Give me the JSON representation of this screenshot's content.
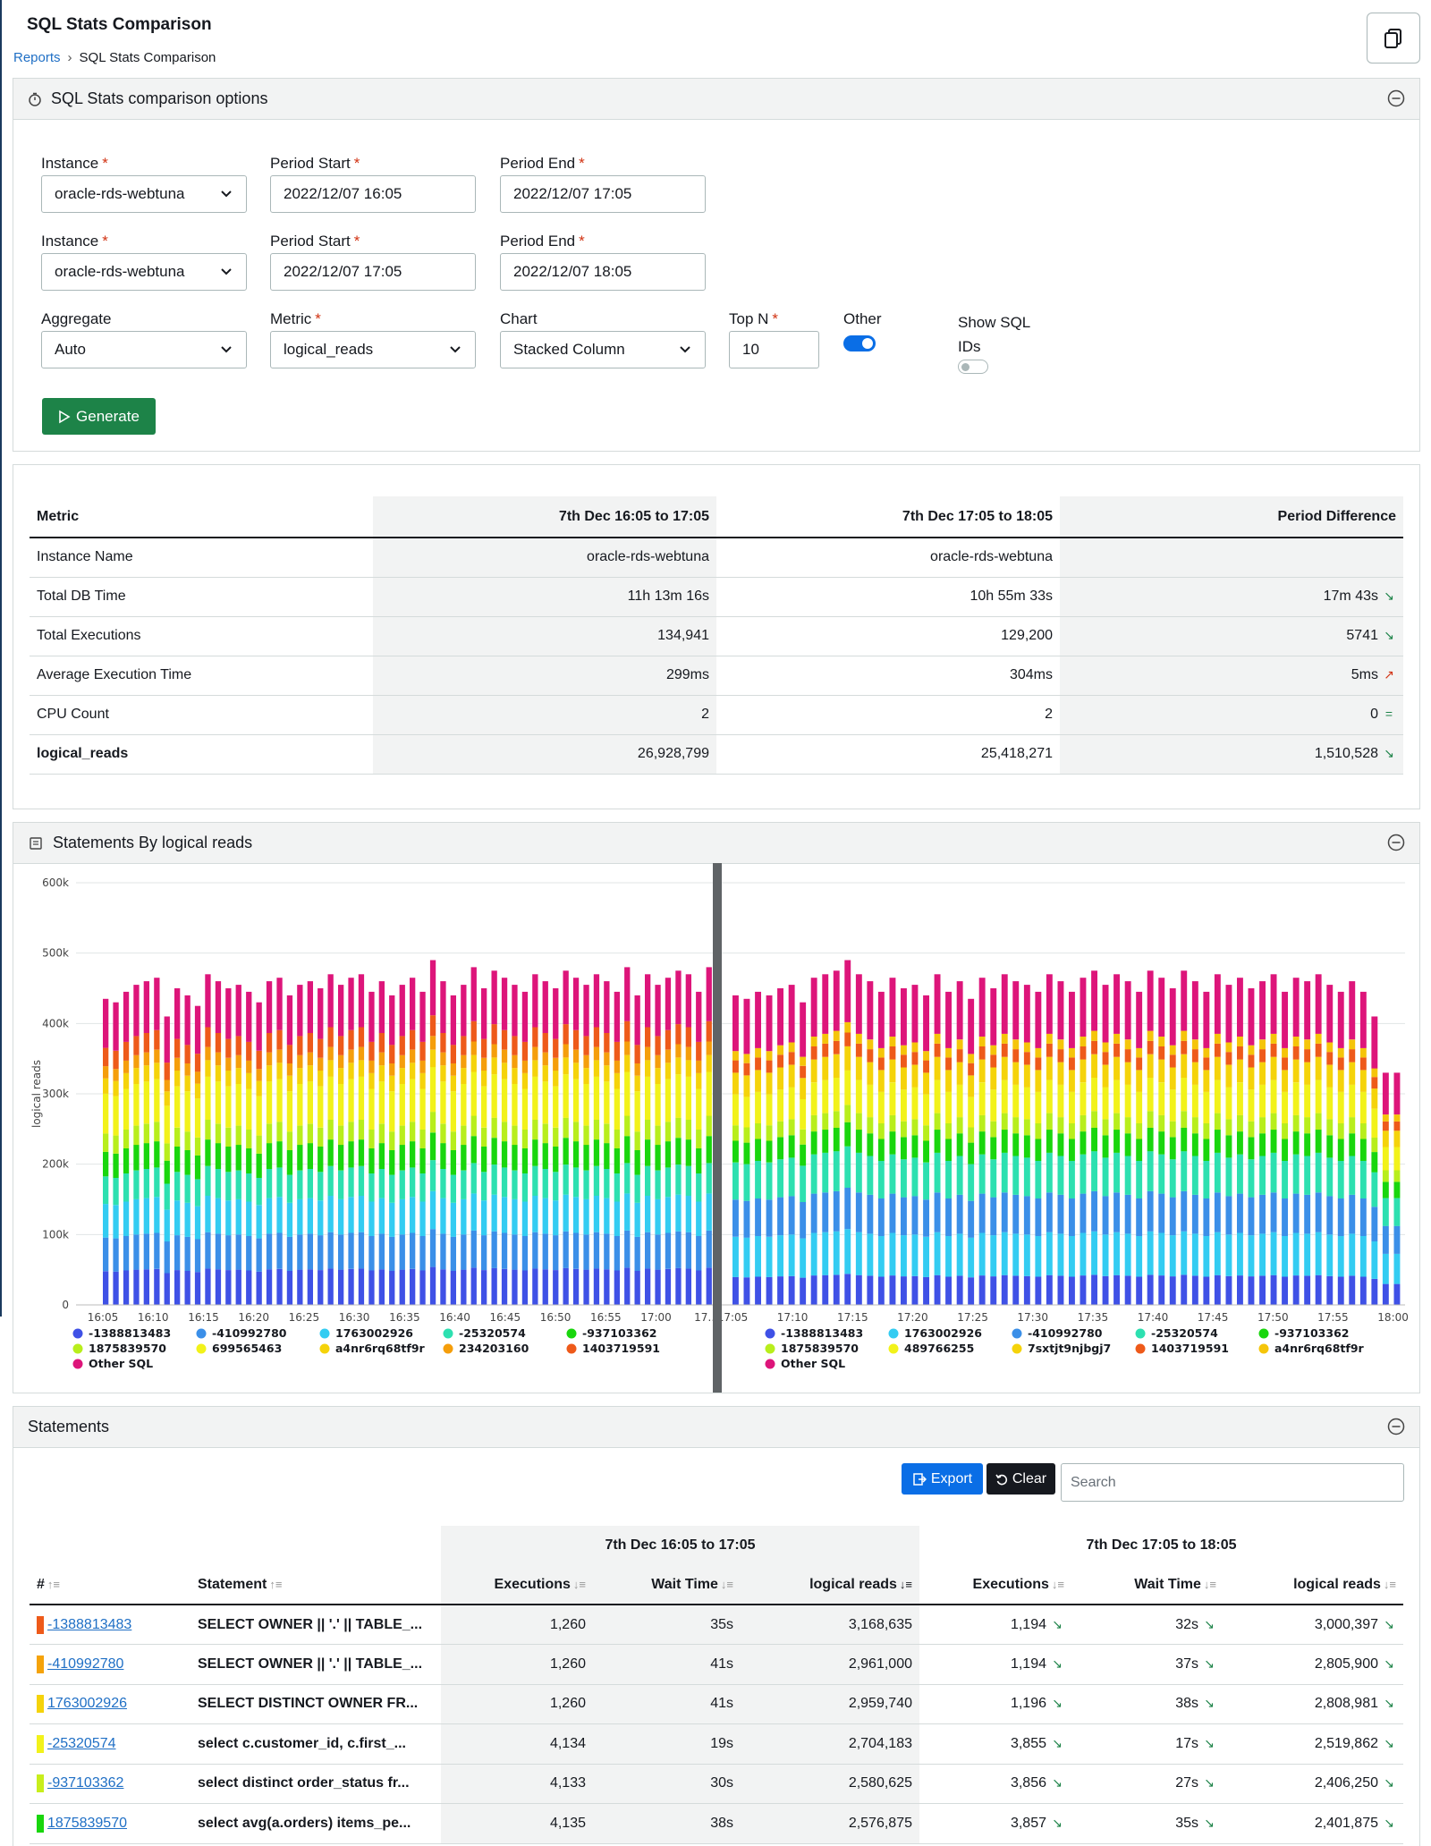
{
  "page": {
    "title": "SQL Stats Comparison",
    "breadcrumb_root": "Reports",
    "breadcrumb_current": "SQL Stats Comparison"
  },
  "options": {
    "panel_title": "SQL Stats comparison options",
    "instance_label": "Instance",
    "period_start_label": "Period Start",
    "period_end_label": "Period End",
    "row1": {
      "instance": "oracle-rds-webtuna",
      "start": "2022/12/07 16:05",
      "end": "2022/12/07 17:05"
    },
    "row2": {
      "instance": "oracle-rds-webtuna",
      "start": "2022/12/07 17:05",
      "end": "2022/12/07 18:05"
    },
    "aggregate_label": "Aggregate",
    "aggregate_value": "Auto",
    "metric_label": "Metric",
    "metric_value": "logical_reads",
    "chart_label": "Chart",
    "chart_value": "Stacked Column",
    "topn_label": "Top N",
    "topn_value": "10",
    "other_label": "Other",
    "other_enabled": true,
    "show_sql_ids_label_1": "Show SQL",
    "show_sql_ids_label_2": "IDs",
    "show_sql_ids_enabled": false,
    "generate_label": "Generate"
  },
  "metrics_table": {
    "headers": [
      "Metric",
      "7th Dec 16:05 to 17:05",
      "7th Dec 17:05 to 18:05",
      "Period Difference"
    ],
    "rows": [
      {
        "metric": "Instance Name",
        "p1": "oracle-rds-webtuna",
        "p2": "oracle-rds-webtuna",
        "diff": "",
        "trend": ""
      },
      {
        "metric": "Total DB Time",
        "p1": "11h 13m 16s",
        "p2": "10h 55m 33s",
        "diff": "17m 43s",
        "trend": "down"
      },
      {
        "metric": "Total Executions",
        "p1": "134,941",
        "p2": "129,200",
        "diff": "5741",
        "trend": "down"
      },
      {
        "metric": "Average Execution Time",
        "p1": "299ms",
        "p2": "304ms",
        "diff": "5ms",
        "trend": "up"
      },
      {
        "metric": "CPU Count",
        "p1": "2",
        "p2": "2",
        "diff": "0",
        "trend": "equal"
      },
      {
        "metric": "logical_reads",
        "p1": "26,928,799",
        "p2": "25,418,271",
        "diff": "1,510,528",
        "trend": "down"
      }
    ]
  },
  "chart_panel": {
    "title": "Statements By logical reads"
  },
  "chart_data": {
    "type": "bar",
    "stacked": true,
    "ylabel": "logical reads",
    "ylim": [
      0,
      600000
    ],
    "yticks": [
      "0",
      "100k",
      "200k",
      "300k",
      "400k",
      "500k",
      "600k"
    ],
    "grid": true,
    "periods": [
      {
        "x_ticks": [
          "16:05",
          "16:10",
          "16:15",
          "16:20",
          "16:25",
          "16:30",
          "16:35",
          "16:40",
          "16:45",
          "16:50",
          "16:55",
          "17:00",
          "17…"
        ],
        "bar_count": 60,
        "totals": [
          435000,
          430000,
          445000,
          455000,
          460000,
          465000,
          410000,
          450000,
          440000,
          425000,
          470000,
          460000,
          450000,
          455000,
          445000,
          430000,
          460000,
          465000,
          440000,
          455000,
          460000,
          450000,
          470000,
          455000,
          465000,
          470000,
          445000,
          460000,
          440000,
          455000,
          465000,
          445000,
          490000,
          460000,
          440000,
          455000,
          480000,
          450000,
          475000,
          465000,
          455000,
          445000,
          470000,
          460000,
          450000,
          475000,
          465000,
          455000,
          470000,
          460000,
          445000,
          480000,
          440000,
          470000,
          455000,
          465000,
          475000,
          470000,
          445000,
          480000
        ],
        "series_values_avg": [
          {
            "name": "-1388813483",
            "value": 52000
          },
          {
            "name": "-410992780",
            "value": 50000
          },
          {
            "name": "1763002926",
            "value": 50000
          },
          {
            "name": "-25320574",
            "value": 48000
          },
          {
            "name": "-937103362",
            "value": 45000
          },
          {
            "name": "1875839570",
            "value": 30000
          },
          {
            "name": "699565463",
            "value": 55000
          },
          {
            "name": "a4nr6rq68tf9r",
            "value": 25000
          },
          {
            "name": "234203160",
            "value": 20000
          },
          {
            "name": "1403719591",
            "value": 20000
          },
          {
            "name": "Other SQL",
            "value": 60000
          }
        ],
        "legend": [
          {
            "name": "-1388813483",
            "color": "#3f51e6"
          },
          {
            "name": "-410992780",
            "color": "#3b8fe8"
          },
          {
            "name": "1763002926",
            "color": "#33ccf2"
          },
          {
            "name": "-25320574",
            "color": "#2de0b0"
          },
          {
            "name": "-937103362",
            "color": "#19d60d"
          },
          {
            "name": "1875839570",
            "color": "#b8ee1c"
          },
          {
            "name": "699565463",
            "color": "#f2f21a"
          },
          {
            "name": "a4nr6rq68tf9r",
            "color": "#f5d30a"
          },
          {
            "name": "234203160",
            "color": "#f59e0b"
          },
          {
            "name": "1403719591",
            "color": "#ee5a1a"
          },
          {
            "name": "Other SQL",
            "color": "#dd157a"
          }
        ]
      },
      {
        "x_ticks": [
          "17:05",
          "17:10",
          "17:15",
          "17:20",
          "17:25",
          "17:30",
          "17:35",
          "17:40",
          "17:45",
          "17:50",
          "17:55",
          "18:00"
        ],
        "bar_count": 60,
        "totals": [
          440000,
          435000,
          445000,
          440000,
          450000,
          455000,
          430000,
          465000,
          470000,
          475000,
          490000,
          470000,
          460000,
          445000,
          465000,
          450000,
          455000,
          440000,
          470000,
          445000,
          460000,
          435000,
          465000,
          450000,
          470000,
          460000,
          455000,
          445000,
          470000,
          460000,
          445000,
          465000,
          475000,
          455000,
          470000,
          460000,
          445000,
          475000,
          465000,
          450000,
          475000,
          460000,
          445000,
          470000,
          455000,
          465000,
          450000,
          460000,
          470000,
          445000,
          465000,
          460000,
          470000,
          455000,
          445000,
          460000,
          445000,
          410000,
          330000,
          330000
        ],
        "legend": [
          {
            "name": "-1388813483",
            "color": "#3f51e6"
          },
          {
            "name": "1763002926",
            "color": "#33ccf2"
          },
          {
            "name": "-410992780",
            "color": "#3b8fe8"
          },
          {
            "name": "-25320574",
            "color": "#2de0b0"
          },
          {
            "name": "-937103362",
            "color": "#19d60d"
          },
          {
            "name": "1875839570",
            "color": "#b8ee1c"
          },
          {
            "name": "489766255",
            "color": "#f2f21a"
          },
          {
            "name": "7sxtjt9njbgj7",
            "color": "#f5d30a"
          },
          {
            "name": "1403719591",
            "color": "#ee5a1a"
          },
          {
            "name": "a4nr6rq68tf9r",
            "color": "#f5c50a"
          },
          {
            "name": "Other SQL",
            "color": "#dd157a"
          }
        ]
      }
    ]
  },
  "statements": {
    "panel_title": "Statements",
    "export_label": "Export",
    "clear_label": "Clear",
    "search_placeholder": "Search",
    "group1": "7th Dec 16:05 to 17:05",
    "group2": "7th Dec 17:05 to 18:05",
    "columns": [
      "#",
      "Statement",
      "Executions",
      "Wait Time",
      "logical reads",
      "Executions",
      "Wait Time",
      "logical reads"
    ],
    "rows": [
      {
        "id": "-1388813483",
        "color": "#ee5a1a",
        "stmt": "SELECT OWNER || '.' || TABLE_...",
        "e1": "1,260",
        "w1": "35s",
        "l1": "3,168,635",
        "e2": "1,194",
        "w2": "32s",
        "l2": "3,000,397"
      },
      {
        "id": "-410992780",
        "color": "#f5a30a",
        "stmt": "SELECT OWNER || '.' || TABLE_...",
        "e1": "1,260",
        "w1": "41s",
        "l1": "2,961,000",
        "e2": "1,194",
        "w2": "37s",
        "l2": "2,805,900"
      },
      {
        "id": "1763002926",
        "color": "#f5d30a",
        "stmt": "SELECT DISTINCT OWNER FR...",
        "e1": "1,260",
        "w1": "41s",
        "l1": "2,959,740",
        "e2": "1,196",
        "w2": "38s",
        "l2": "2,808,981"
      },
      {
        "id": "-25320574",
        "color": "#f2f21a",
        "stmt": "select c.customer_id, c.first_...",
        "e1": "4,134",
        "w1": "19s",
        "l1": "2,704,183",
        "e2": "3,855",
        "w2": "17s",
        "l2": "2,519,862"
      },
      {
        "id": "-937103362",
        "color": "#c8ee1c",
        "stmt": "select distinct order_status fr...",
        "e1": "4,133",
        "w1": "30s",
        "l1": "2,580,625",
        "e2": "3,856",
        "w2": "27s",
        "l2": "2,406,250"
      },
      {
        "id": "1875839570",
        "color": "#19d60d",
        "stmt": "select avg(a.orders) items_pe...",
        "e1": "4,135",
        "w1": "38s",
        "l1": "2,576,875",
        "e2": "3,857",
        "w2": "35s",
        "l2": "2,401,875"
      }
    ]
  }
}
